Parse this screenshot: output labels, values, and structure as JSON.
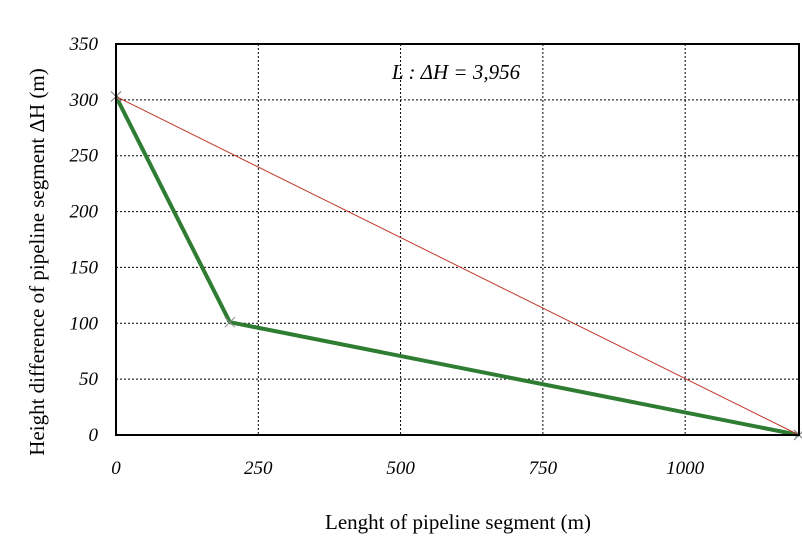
{
  "chart_data": {
    "type": "line",
    "xlabel": "Lenght of pipeline segment (m)",
    "ylabel": "Height difference of pipeline segment ΔH (m)",
    "annotation": "L : ΔH = 3,956",
    "xlim": [
      0,
      1200
    ],
    "ylim": [
      0,
      350
    ],
    "x_ticks": [
      0,
      250,
      500,
      750,
      1000
    ],
    "y_ticks": [
      0,
      50,
      100,
      150,
      200,
      250,
      300,
      350
    ],
    "grid": true,
    "series": [
      {
        "color": "#2e7d32",
        "points": [
          [
            0,
            303
          ],
          [
            200,
            101
          ],
          [
            1200,
            0
          ]
        ]
      },
      {
        "color": "#c0392b",
        "points": [
          [
            0,
            303
          ],
          [
            1200,
            0
          ]
        ]
      }
    ]
  }
}
